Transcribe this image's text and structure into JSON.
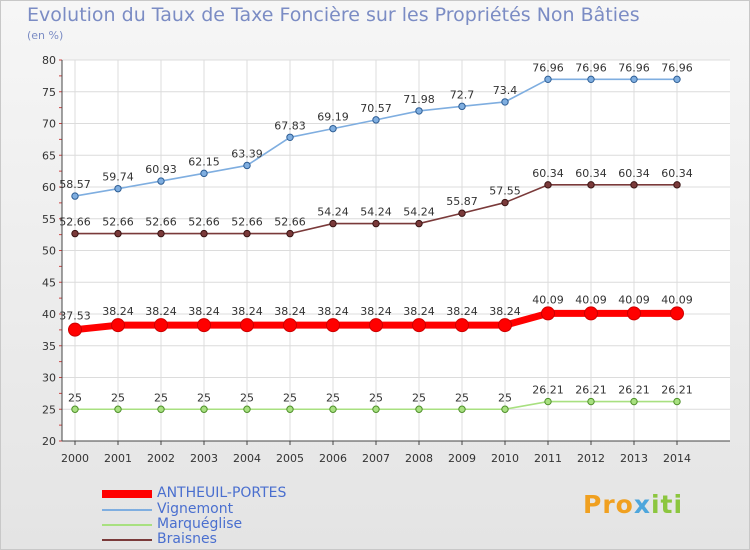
{
  "chart_data": {
    "type": "line",
    "title": "Evolution du Taux de Taxe Foncière sur les Propriétés Non Bâties",
    "ylabel": "(en %)",
    "xlabel": "",
    "ylim": [
      20,
      80
    ],
    "yticks": [
      20,
      25,
      30,
      35,
      40,
      45,
      50,
      55,
      60,
      65,
      70,
      75,
      80
    ],
    "grid": true,
    "x": [
      "2000",
      "2001",
      "2002",
      "2003",
      "2004",
      "2005",
      "2006",
      "2007",
      "2008",
      "2009",
      "2010",
      "2011",
      "2012",
      "2013",
      "2014"
    ],
    "series": [
      {
        "name": "ANTHEUIL-PORTES",
        "color": "#ff0000",
        "values": [
          37.53,
          38.24,
          38.24,
          38.24,
          38.24,
          38.24,
          38.24,
          38.24,
          38.24,
          38.24,
          38.24,
          40.09,
          40.09,
          40.09,
          40.09
        ],
        "labels": [
          "37.53",
          "38.24",
          "38.24",
          "38.24",
          "38.24",
          "38.24",
          "38.24",
          "38.24",
          "38.24",
          "38.24",
          "38.24",
          "40.09",
          "40.09",
          "40.09",
          "40.09"
        ]
      },
      {
        "name": "Vignemont",
        "color": "#7faee0",
        "values": [
          58.57,
          59.74,
          60.93,
          62.15,
          63.39,
          67.83,
          69.19,
          70.57,
          71.98,
          72.7,
          73.4,
          76.96,
          76.96,
          76.96,
          76.96
        ],
        "labels": [
          "58.57",
          "59.74",
          "60.93",
          "62.15",
          "63.39",
          "67.83",
          "69.19",
          "70.57",
          "71.98",
          "72.7",
          "73.4",
          "76.96",
          "76.96",
          "76.96",
          "76.96"
        ]
      },
      {
        "name": "Marquéglise",
        "color": "#a8e080",
        "values": [
          25,
          25,
          25,
          25,
          25,
          25,
          25,
          25,
          25,
          25,
          25,
          26.21,
          26.21,
          26.21,
          26.21
        ],
        "labels": [
          "25",
          "25",
          "25",
          "25",
          "25",
          "25",
          "25",
          "25",
          "25",
          "25",
          "25",
          "26.21",
          "26.21",
          "26.21",
          "26.21"
        ]
      },
      {
        "name": "Braisnes",
        "color": "#7a3a3a",
        "values": [
          52.66,
          52.66,
          52.66,
          52.66,
          52.66,
          52.66,
          54.24,
          54.24,
          54.24,
          55.87,
          57.55,
          60.34,
          60.34,
          60.34,
          60.34
        ],
        "labels": [
          "52.66",
          "52.66",
          "52.66",
          "52.66",
          "52.66",
          "52.66",
          "54.24",
          "54.24",
          "54.24",
          "55.87",
          "57.55",
          "60.34",
          "60.34",
          "60.34",
          "60.34"
        ]
      }
    ]
  },
  "logo": {
    "part1": "Pro",
    "part2": "x",
    "part3": "iti"
  }
}
